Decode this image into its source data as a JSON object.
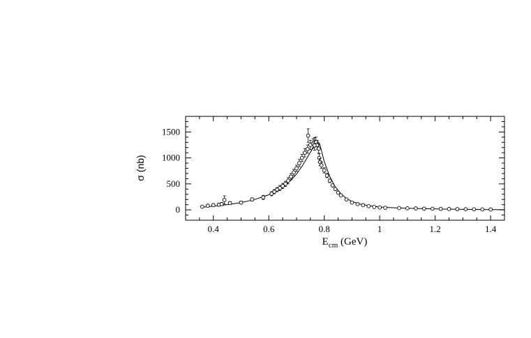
{
  "chart_data": {
    "type": "scatter",
    "ylabel": "σ (nb)",
    "xlabel_main": "E",
    "xlabel_sub": "cm",
    "xlabel_tail": " (GeV)",
    "xlim": [
      0.3,
      1.45
    ],
    "ylim": [
      -200,
      1800
    ],
    "x_ticks": [
      0.4,
      0.6,
      0.8,
      1.0,
      1.2,
      1.4
    ],
    "x_tick_labels": [
      "0.4",
      "0.6",
      "0.8",
      "1",
      "1.2",
      "1.4"
    ],
    "y_ticks": [
      0,
      500,
      1000,
      1500
    ],
    "y_tick_labels": [
      "0",
      "500",
      "1000",
      "1500"
    ],
    "grid": false,
    "series": [
      {
        "kind": "points",
        "marker": "open-circle",
        "x": [
          0.36,
          0.38,
          0.4,
          0.42,
          0.43,
          0.44,
          0.46,
          0.5,
          0.54,
          0.58,
          0.61,
          0.62,
          0.63,
          0.64,
          0.65,
          0.66,
          0.67,
          0.68,
          0.69,
          0.7,
          0.71,
          0.72,
          0.73,
          0.74,
          0.75,
          0.76,
          0.765,
          0.77,
          0.775,
          0.78,
          0.782,
          0.785,
          0.79,
          0.8,
          0.81,
          0.82,
          0.83,
          0.84,
          0.85,
          0.86,
          0.88,
          0.9,
          0.92,
          0.94,
          0.96,
          0.98,
          1.0,
          1.02,
          1.07,
          1.1,
          1.13,
          1.16,
          1.19,
          1.22,
          1.25,
          1.28,
          1.31,
          1.34,
          1.37,
          1.4
        ],
        "y": [
          60,
          80,
          90,
          100,
          110,
          190,
          130,
          140,
          200,
          240,
          310,
          350,
          390,
          420,
          460,
          500,
          560,
          640,
          720,
          800,
          900,
          1000,
          1100,
          1170,
          1250,
          1280,
          1300,
          1310,
          1250,
          1180,
          1000,
          920,
          860,
          760,
          660,
          560,
          470,
          400,
          330,
          280,
          200,
          140,
          110,
          90,
          70,
          55,
          45,
          40,
          35,
          30,
          28,
          24,
          22,
          19,
          16,
          14,
          12,
          10,
          8,
          6
        ],
        "error": [
          20,
          25,
          25,
          30,
          30,
          80,
          30,
          30,
          30,
          40,
          40,
          40,
          40,
          50,
          50,
          50,
          60,
          60,
          60,
          60,
          70,
          70,
          80,
          80,
          90,
          90,
          90,
          90,
          90,
          90,
          80,
          70,
          60,
          50,
          40,
          35,
          30,
          25,
          20,
          20,
          15,
          10,
          10,
          8,
          8,
          6,
          5,
          5,
          4,
          4,
          4,
          3,
          3,
          3,
          3,
          2,
          2,
          2,
          2,
          2
        ]
      },
      {
        "kind": "outliers",
        "marker": "open-circle",
        "x": [
          0.742,
          0.765
        ],
        "y": [
          1430,
          1240
        ],
        "error": [
          130,
          90
        ]
      },
      {
        "kind": "fit",
        "x": [
          0.36,
          0.4,
          0.45,
          0.5,
          0.55,
          0.6,
          0.65,
          0.68,
          0.7,
          0.72,
          0.74,
          0.76,
          0.77,
          0.775,
          0.78,
          0.785,
          0.79,
          0.8,
          0.82,
          0.84,
          0.86,
          0.88,
          0.9,
          0.93,
          0.96,
          1.0,
          1.05,
          1.1,
          1.2,
          1.3,
          1.4,
          1.45
        ],
        "y": [
          50,
          70,
          100,
          140,
          200,
          290,
          440,
          570,
          690,
          840,
          1020,
          1200,
          1280,
          1310,
          1300,
          1240,
          1140,
          930,
          640,
          440,
          310,
          220,
          160,
          110,
          80,
          55,
          40,
          30,
          18,
          10,
          5,
          3
        ]
      }
    ]
  }
}
